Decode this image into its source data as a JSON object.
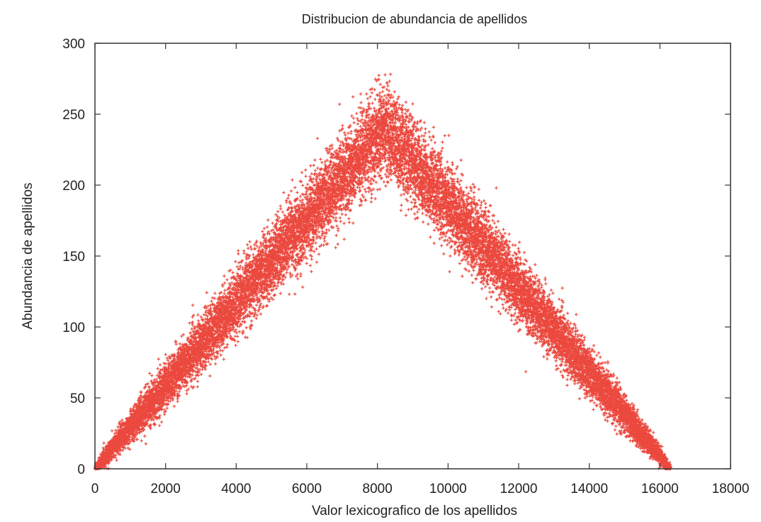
{
  "chart_data": {
    "type": "scatter",
    "title": "Distribucion de abundancia de apellidos",
    "xlabel": "Valor lexicografico de los apellidos",
    "ylabel": "Abundancia de apellidos",
    "xlim": [
      0,
      18000
    ],
    "ylim": [
      0,
      300
    ],
    "xticks": [
      0,
      2000,
      4000,
      6000,
      8000,
      10000,
      12000,
      14000,
      16000,
      18000
    ],
    "xtick_labels": [
      "0",
      "2000",
      "4000",
      "6000",
      "8000",
      "10000",
      "12000",
      "14000",
      "16000",
      "18000"
    ],
    "yticks": [
      0,
      50,
      100,
      150,
      200,
      250,
      300
    ],
    "ytick_labels": [
      "0",
      "50",
      "100",
      "150",
      "200",
      "250",
      "300"
    ],
    "grid": false,
    "legend": null,
    "marker": "plus",
    "series": [
      {
        "color": "#e8281c",
        "description_of_shape": "triangular distribution: abundance rises roughly linearly from 0 at x=0 to a peak near 240 (max about 290) at x≈8200, then falls linearly back to 0 at x≈16300",
        "peak": [
          8200,
          240
        ],
        "x_end": 16300,
        "point_count_estimate": 16300,
        "sample_points": [
          [
            0,
            0
          ],
          [
            500,
            14
          ],
          [
            1000,
            29
          ],
          [
            1500,
            44
          ],
          [
            2000,
            59
          ],
          [
            2500,
            73
          ],
          [
            3000,
            88
          ],
          [
            3500,
            103
          ],
          [
            4000,
            117
          ],
          [
            4500,
            132
          ],
          [
            5000,
            146
          ],
          [
            5500,
            161
          ],
          [
            6000,
            176
          ],
          [
            6500,
            190
          ],
          [
            7000,
            205
          ],
          [
            7500,
            219
          ],
          [
            8000,
            234
          ],
          [
            8200,
            240
          ],
          [
            8500,
            236
          ],
          [
            9000,
            222
          ],
          [
            9500,
            207
          ],
          [
            10000,
            193
          ],
          [
            10500,
            178
          ],
          [
            11000,
            163
          ],
          [
            11500,
            148
          ],
          [
            12000,
            134
          ],
          [
            12500,
            119
          ],
          [
            13000,
            104
          ],
          [
            13500,
            89
          ],
          [
            14000,
            74
          ],
          [
            14500,
            60
          ],
          [
            15000,
            45
          ],
          [
            15500,
            30
          ],
          [
            16000,
            15
          ],
          [
            16300,
            0
          ]
        ]
      }
    ]
  }
}
